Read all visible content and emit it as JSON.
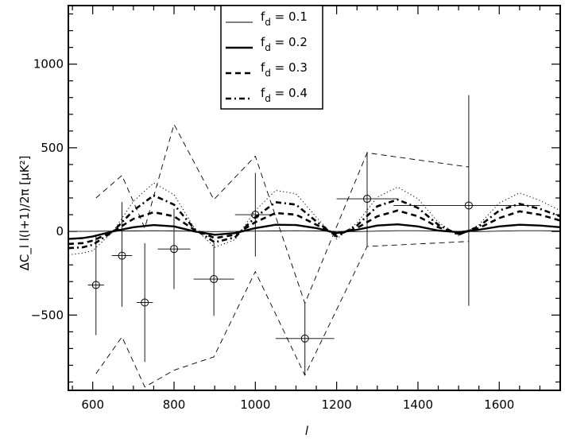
{
  "chart_data": {
    "type": "line",
    "xlabel": "l",
    "ylabel": "ΔC_l l(l+1)/2π  [μK²]",
    "xlim": [
      540,
      1750
    ],
    "ylim": [
      -950,
      1350
    ],
    "xticks": [
      600,
      800,
      1000,
      1200,
      1400,
      1600
    ],
    "yticks": [
      -500,
      0,
      500,
      1000
    ],
    "tick_labels_x": [
      "600",
      "800",
      "1000",
      "1200",
      "1400",
      "1600"
    ],
    "tick_labels_y": [
      "−500",
      "0",
      "500",
      "1000"
    ],
    "grid": false,
    "legend_position": "top-center",
    "series": [
      {
        "name": "f_d = 0.1",
        "style": "thin-solid",
        "x": [
          540,
          600,
          650,
          700,
          750,
          800,
          850,
          900,
          950,
          1000,
          1050,
          1100,
          1150,
          1200,
          1250,
          1300,
          1350,
          1400,
          1450,
          1500,
          1550,
          1600,
          1650,
          1700,
          1750
        ],
        "y": [
          0,
          1,
          2,
          3,
          4,
          3,
          1,
          -1,
          0,
          2,
          3,
          4,
          3,
          0,
          -1,
          2,
          4,
          4,
          2,
          0,
          -1,
          2,
          4,
          4,
          3
        ]
      },
      {
        "name": "f_d = 0.2",
        "style": "thick-solid",
        "x": [
          540,
          575,
          600,
          650,
          700,
          750,
          800,
          850,
          900,
          950,
          1000,
          1050,
          1100,
          1150,
          1200,
          1250,
          1300,
          1350,
          1400,
          1450,
          1500,
          1550,
          1600,
          1650,
          1700,
          1750
        ],
        "y": [
          -45,
          -40,
          -30,
          0,
          25,
          38,
          30,
          0,
          -20,
          -10,
          20,
          40,
          38,
          20,
          -10,
          10,
          35,
          42,
          30,
          5,
          -5,
          10,
          30,
          40,
          35,
          25
        ]
      },
      {
        "name": "f_d = 0.3",
        "style": "thick-dashed",
        "x": [
          540,
          575,
          600,
          650,
          700,
          750,
          800,
          850,
          900,
          950,
          1000,
          1050,
          1100,
          1150,
          1200,
          1250,
          1300,
          1350,
          1400,
          1450,
          1500,
          1550,
          1600,
          1650,
          1700,
          1750
        ],
        "y": [
          -75,
          -70,
          -55,
          0,
          75,
          115,
          90,
          10,
          -40,
          -20,
          55,
          110,
          100,
          40,
          -20,
          20,
          90,
          125,
          90,
          25,
          -15,
          20,
          80,
          120,
          100,
          65
        ]
      },
      {
        "name": "f_d = 0.4",
        "style": "thick-dashdot",
        "x": [
          540,
          575,
          600,
          650,
          700,
          750,
          800,
          850,
          900,
          950,
          1000,
          1050,
          1100,
          1150,
          1200,
          1250,
          1300,
          1350,
          1400,
          1450,
          1500,
          1550,
          1600,
          1650,
          1700,
          1750
        ],
        "y": [
          -100,
          -95,
          -80,
          0,
          125,
          215,
          160,
          15,
          -65,
          -35,
          85,
          175,
          160,
          60,
          -30,
          35,
          150,
          190,
          140,
          40,
          -20,
          30,
          125,
          165,
          135,
          90
        ]
      },
      {
        "name": "",
        "style": "dotted",
        "x": [
          540,
          575,
          600,
          650,
          700,
          750,
          800,
          850,
          900,
          950,
          1000,
          1050,
          1100,
          1150,
          1200,
          1250,
          1300,
          1350,
          1400,
          1450,
          1500,
          1550,
          1600,
          1650,
          1700,
          1750
        ],
        "y": [
          -140,
          -130,
          -115,
          0,
          180,
          290,
          220,
          20,
          -95,
          -50,
          125,
          245,
          225,
          85,
          -45,
          50,
          205,
          265,
          195,
          55,
          -25,
          40,
          170,
          230,
          185,
          125
        ]
      },
      {
        "name": "",
        "style": "thin-dashed",
        "x": [
          608,
          672,
          728,
          800,
          898,
          1000,
          1122,
          1275,
          1525
        ],
        "y": [
          200,
          335,
          20,
          640,
          190,
          450,
          -430,
          470,
          385
        ]
      },
      {
        "name": "",
        "style": "thin-dashed",
        "x": [
          608,
          672,
          728,
          800,
          898,
          1000,
          1122,
          1275,
          1525
        ],
        "y": [
          -850,
          -630,
          -930,
          -830,
          -750,
          -240,
          -860,
          -90,
          -60
        ]
      }
    ],
    "points": [
      {
        "x": 608,
        "y": -320,
        "xerr": [
          20,
          20
        ],
        "yerr": [
          300,
          300
        ]
      },
      {
        "x": 672,
        "y": -145,
        "xerr": [
          25,
          25
        ],
        "yerr": [
          305,
          320
        ]
      },
      {
        "x": 728,
        "y": -425,
        "xerr": [
          20,
          20
        ],
        "yerr": [
          355,
          355
        ]
      },
      {
        "x": 800,
        "y": -105,
        "xerr": [
          40,
          40
        ],
        "yerr": [
          240,
          240
        ]
      },
      {
        "x": 898,
        "y": -285,
        "xerr": [
          50,
          50
        ],
        "yerr": [
          220,
          220
        ]
      },
      {
        "x": 1000,
        "y": 100,
        "xerr": [
          50,
          50
        ],
        "yerr": [
          250,
          250
        ]
      },
      {
        "x": 1122,
        "y": -640,
        "xerr": [
          72,
          72
        ],
        "yerr": [
          220,
          210
        ]
      },
      {
        "x": 1275,
        "y": 195,
        "xerr": [
          75,
          75
        ],
        "yerr": [
          285,
          280
        ]
      },
      {
        "x": 1525,
        "y": 155,
        "xerr": [
          185,
          175
        ],
        "yerr": [
          600,
          660
        ]
      }
    ]
  }
}
